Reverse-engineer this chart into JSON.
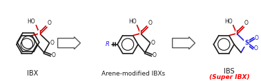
{
  "bg_color": "#ffffff",
  "ibx_label": "IBX",
  "middle_label": "Arene-modified IBXs",
  "ibs_label": "IBS",
  "ibs_sublabel": "(Super IBX)",
  "bond_color": "#1a1a1a",
  "iodine_color": "#cc0000",
  "sulfur_blue": "#1a1aee",
  "r_color": "#1a1aee",
  "arrow_color": "#555555",
  "figsize": [
    3.78,
    1.18
  ],
  "dpi": 100
}
